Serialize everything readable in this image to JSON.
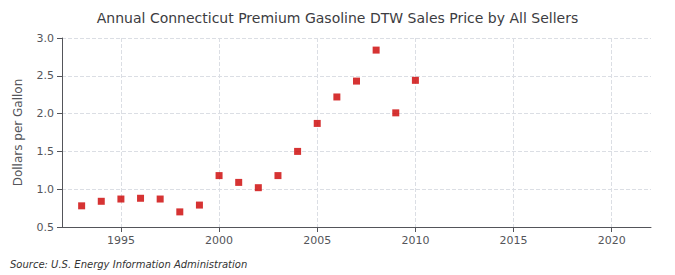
{
  "chart_data": {
    "type": "scatter",
    "title": "Annual Connecticut Premium Gasoline DTW Sales Price by All Sellers",
    "ylabel": "Dollars per Gallon",
    "source": "Source: U.S. Energy Information Administration",
    "x": [
      1993,
      1994,
      1995,
      1996,
      1997,
      1998,
      1999,
      2000,
      2001,
      2002,
      2003,
      2004,
      2005,
      2006,
      2007,
      2008,
      2009,
      2010
    ],
    "values": [
      0.78,
      0.84,
      0.87,
      0.88,
      0.87,
      0.7,
      0.79,
      1.18,
      1.09,
      1.02,
      1.18,
      1.5,
      1.87,
      2.22,
      2.43,
      2.84,
      2.01,
      2.44
    ],
    "color": "#cc0000",
    "marker": "square",
    "xlim": [
      1992,
      2022
    ],
    "ylim": [
      0.5,
      3.0
    ],
    "xticks": [
      1995,
      2000,
      2005,
      2010,
      2015,
      2020
    ],
    "yticks": [
      0.5,
      {
        "value": 1.0,
        "label": "1.0"
      },
      1.5,
      {
        "value": 2.0,
        "label": "2.0"
      },
      2.5,
      {
        "value": 3.0,
        "label": "3.0"
      }
    ],
    "grid": true
  }
}
